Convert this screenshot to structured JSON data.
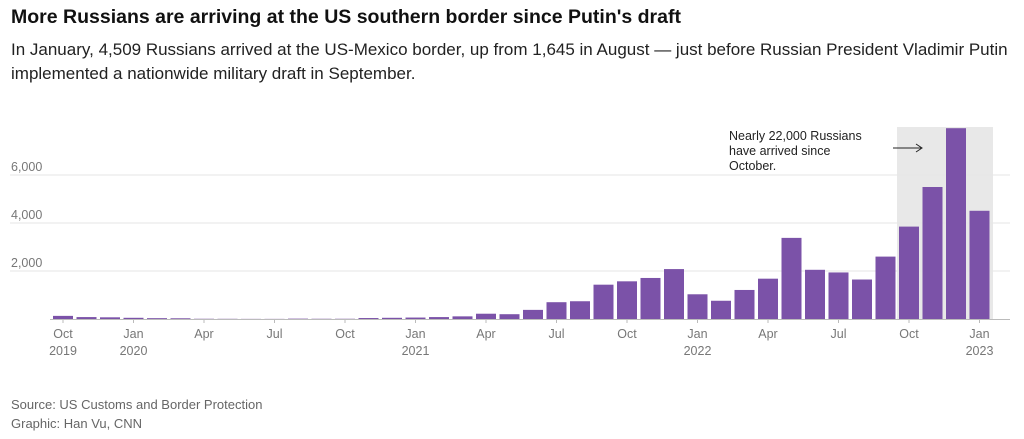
{
  "header": {
    "title": "More Russians are arriving at the US southern border since Putin's draft",
    "subtitle": "In January, 4,509 Russians arrived at the US-Mexico border, up from 1,645 in August — just before Russian President Vladimir Putin implemented a nationwide military draft in September."
  },
  "footer": {
    "source": "Source: US Customs and Border Protection",
    "graphic": "Graphic: Han Vu, CNN"
  },
  "chart_data": {
    "type": "bar",
    "title": "More Russians are arriving at the US southern border since Putin's draft",
    "xlabel": "",
    "ylabel": "",
    "ylim": [
      0,
      8000
    ],
    "grid": "horizontal",
    "bar_color": "#7B52A8",
    "highlight_color": "#E8E8E8",
    "categories": [
      "2019-10",
      "2019-11",
      "2019-12",
      "2020-01",
      "2020-02",
      "2020-03",
      "2020-04",
      "2020-05",
      "2020-06",
      "2020-07",
      "2020-08",
      "2020-09",
      "2020-10",
      "2020-11",
      "2020-12",
      "2021-01",
      "2021-02",
      "2021-03",
      "2021-04",
      "2021-05",
      "2021-06",
      "2021-07",
      "2021-08",
      "2021-09",
      "2021-10",
      "2021-11",
      "2021-12",
      "2022-01",
      "2022-02",
      "2022-03",
      "2022-04",
      "2022-05",
      "2022-06",
      "2022-07",
      "2022-08",
      "2022-09",
      "2022-10",
      "2022-11",
      "2022-12",
      "2023-01"
    ],
    "values": [
      130,
      80,
      70,
      50,
      35,
      30,
      10,
      8,
      5,
      5,
      15,
      10,
      10,
      40,
      50,
      60,
      80,
      110,
      220,
      200,
      380,
      700,
      740,
      1430,
      1570,
      1710,
      2080,
      1030,
      760,
      1210,
      1680,
      3380,
      2050,
      1940,
      1645,
      2600,
      3850,
      5500,
      7950,
      4509
    ],
    "yticks": [
      {
        "value": 2000,
        "label": "2,000"
      },
      {
        "value": 4000,
        "label": "4,000"
      },
      {
        "value": 6000,
        "label": "6,000"
      }
    ],
    "xticks": [
      {
        "index": 0,
        "label": "Oct",
        "year": "2019"
      },
      {
        "index": 3,
        "label": "Jan",
        "year": "2020"
      },
      {
        "index": 6,
        "label": "Apr",
        "year": ""
      },
      {
        "index": 9,
        "label": "Jul",
        "year": ""
      },
      {
        "index": 12,
        "label": "Oct",
        "year": ""
      },
      {
        "index": 15,
        "label": "Jan",
        "year": "2021"
      },
      {
        "index": 18,
        "label": "Apr",
        "year": ""
      },
      {
        "index": 21,
        "label": "Jul",
        "year": ""
      },
      {
        "index": 24,
        "label": "Oct",
        "year": ""
      },
      {
        "index": 27,
        "label": "Jan",
        "year": "2022"
      },
      {
        "index": 30,
        "label": "Apr",
        "year": ""
      },
      {
        "index": 33,
        "label": "Jul",
        "year": ""
      },
      {
        "index": 36,
        "label": "Oct",
        "year": ""
      },
      {
        "index": 39,
        "label": "Jan",
        "year": "2023"
      }
    ],
    "highlight": {
      "start": "2022-10",
      "end": "2023-01"
    },
    "annotation": {
      "lines": [
        "Nearly 22,000 Russians",
        "have arrived since",
        "October."
      ]
    }
  }
}
